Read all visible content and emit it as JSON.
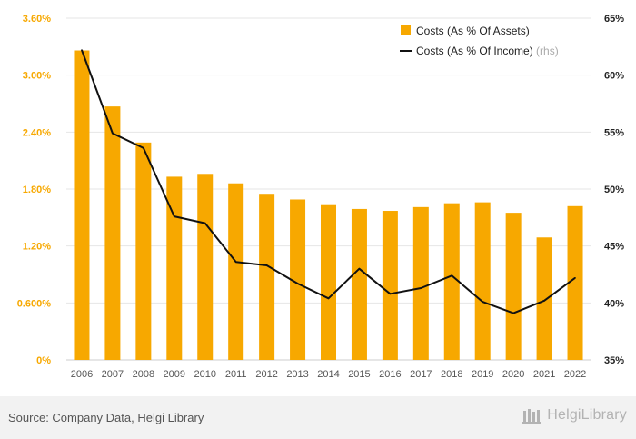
{
  "chart_data": {
    "type": "bar+line",
    "categories": [
      "2006",
      "2007",
      "2008",
      "2009",
      "2010",
      "2011",
      "2012",
      "2013",
      "2014",
      "2015",
      "2016",
      "2017",
      "2018",
      "2019",
      "2020",
      "2021",
      "2022"
    ],
    "series": [
      {
        "name": "Costs (As % Of Assets)",
        "type": "bar",
        "axis": "left",
        "color": "#f7a800",
        "values": [
          3.26,
          2.67,
          2.29,
          1.93,
          1.96,
          1.86,
          1.75,
          1.69,
          1.64,
          1.59,
          1.57,
          1.61,
          1.65,
          1.66,
          1.55,
          1.29,
          1.62
        ]
      },
      {
        "name": "Costs (As % Of Income)",
        "type": "line",
        "axis": "right",
        "color": "#111111",
        "values": [
          62.2,
          54.9,
          53.6,
          47.6,
          47.0,
          43.6,
          43.3,
          41.7,
          40.4,
          43.0,
          40.8,
          41.3,
          42.4,
          40.1,
          39.1,
          40.2,
          42.2
        ]
      }
    ],
    "y_left": {
      "min": 0,
      "max": 3.6,
      "ticks": [
        "0%",
        "0.600%",
        "1.20%",
        "1.80%",
        "2.40%",
        "3.00%",
        "3.60%"
      ],
      "color": "#f7a800"
    },
    "y_right": {
      "min": 35,
      "max": 65,
      "ticks": [
        "35%",
        "40%",
        "45%",
        "50%",
        "55%",
        "60%",
        "65%"
      ]
    },
    "legend": {
      "position": "top-right",
      "items": [
        {
          "label": "Costs (As % Of Assets)",
          "suffix": ""
        },
        {
          "label": "Costs (As % Of Income)",
          "suffix": " (rhs)"
        }
      ]
    },
    "grid": true
  },
  "footer": {
    "source": "Source: Company Data, Helgi Library",
    "brand": "HelgiLibrary"
  }
}
